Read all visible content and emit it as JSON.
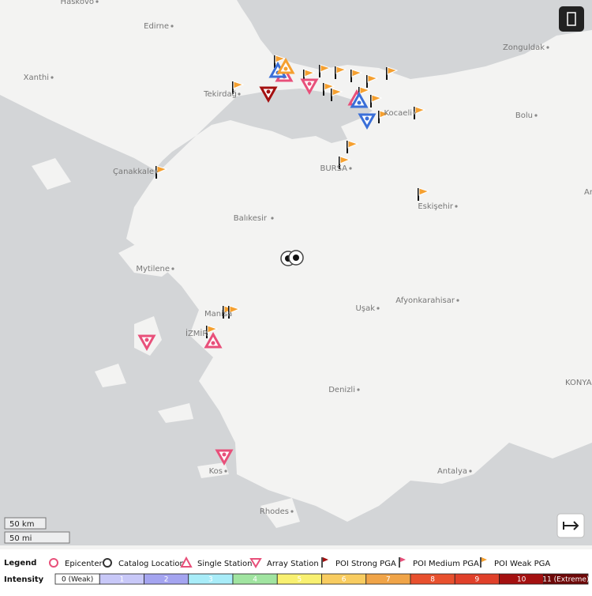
{
  "map": {
    "cities": [
      "Haskovo",
      "Edirne",
      "Zonguldak",
      "Xanthi",
      "Tekirdağ",
      "Kocaeli",
      "Bolu",
      "Çanakkale",
      "BURSA",
      "Eskişehir",
      "Ankara",
      "Balıkesir",
      "Mytilene",
      "Manisa",
      "İZMİR",
      "Uşak",
      "Afyonkarahisar",
      "Denizli",
      "KONYA",
      "Kos",
      "Antalya",
      "Rhodes"
    ]
  },
  "scale": {
    "km": "50 km",
    "mi": "50 mi"
  },
  "legend": {
    "title": "Legend",
    "items": [
      "Epicenter",
      "Catalog Location",
      "Single Station",
      "Array Station",
      "POI Strong PGA",
      "POI Medium PGA",
      "POI Weak PGA"
    ]
  },
  "intensity": {
    "title": "Intensity",
    "levels": [
      {
        "label": "0 (Weak)",
        "color": "#ffffff"
      },
      {
        "label": "1",
        "color": "#c8c8f8"
      },
      {
        "label": "2",
        "color": "#a4a4f0"
      },
      {
        "label": "3",
        "color": "#a8ecf8"
      },
      {
        "label": "4",
        "color": "#a0e4a0"
      },
      {
        "label": "5",
        "color": "#f8f070"
      },
      {
        "label": "6",
        "color": "#f8cc60"
      },
      {
        "label": "7",
        "color": "#f0a448"
      },
      {
        "label": "8",
        "color": "#e8502e"
      },
      {
        "label": "9",
        "color": "#e0402a"
      },
      {
        "label": "10",
        "color": "#a41010"
      },
      {
        "label": "11 (Extreme)",
        "color": "#6e0808"
      }
    ]
  }
}
